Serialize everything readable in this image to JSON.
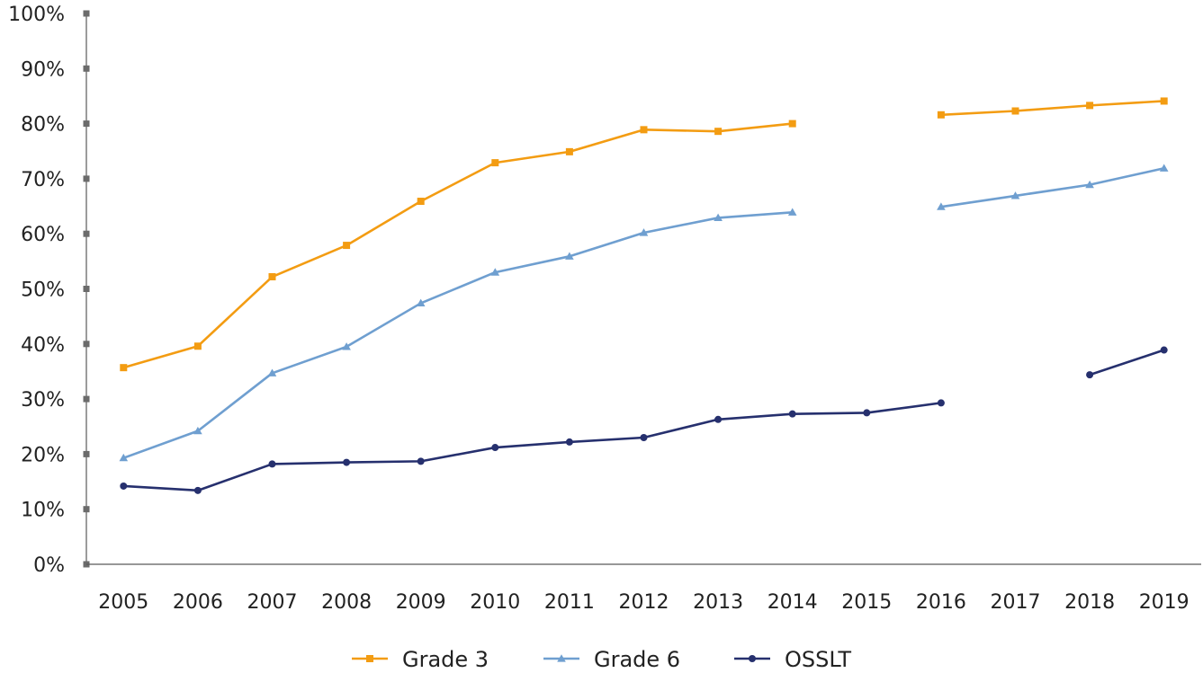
{
  "chart_data": {
    "type": "line",
    "title": "",
    "xlabel": "",
    "ylabel": "",
    "categories": [
      "2005",
      "2006",
      "2007",
      "2008",
      "2009",
      "2010",
      "2011",
      "2012",
      "2013",
      "2014",
      "2015",
      "2016",
      "2017",
      "2018",
      "2019"
    ],
    "ylim": [
      0,
      100
    ],
    "y_ticks": [
      "0%",
      "10%",
      "20%",
      "30%",
      "40%",
      "50%",
      "60%",
      "70%",
      "80%",
      "90%",
      "100%"
    ],
    "y_tick_values": [
      0,
      10,
      20,
      30,
      40,
      50,
      60,
      70,
      80,
      90,
      100
    ],
    "grid": false,
    "legend_position": "bottom",
    "series": [
      {
        "name": "Grade 3",
        "color": "#f39c12",
        "marker": "square",
        "values": [
          35.7,
          39.6,
          52.2,
          57.9,
          65.9,
          72.9,
          74.9,
          78.9,
          78.6,
          80.0,
          null,
          81.6,
          82.3,
          83.3,
          84.1
        ]
      },
      {
        "name": "Grade 6",
        "color": "#6f9fd0",
        "marker": "triangle",
        "values": [
          19.3,
          24.2,
          34.7,
          39.5,
          47.4,
          53.0,
          55.9,
          60.2,
          62.9,
          63.9,
          null,
          64.9,
          66.9,
          68.9,
          71.9
        ]
      },
      {
        "name": "OSSLT",
        "color": "#26306e",
        "marker": "circle",
        "values": [
          14.2,
          13.4,
          18.2,
          18.5,
          18.7,
          21.2,
          22.2,
          23.0,
          26.3,
          27.3,
          27.5,
          29.3,
          null,
          34.4,
          38.9
        ]
      }
    ]
  }
}
